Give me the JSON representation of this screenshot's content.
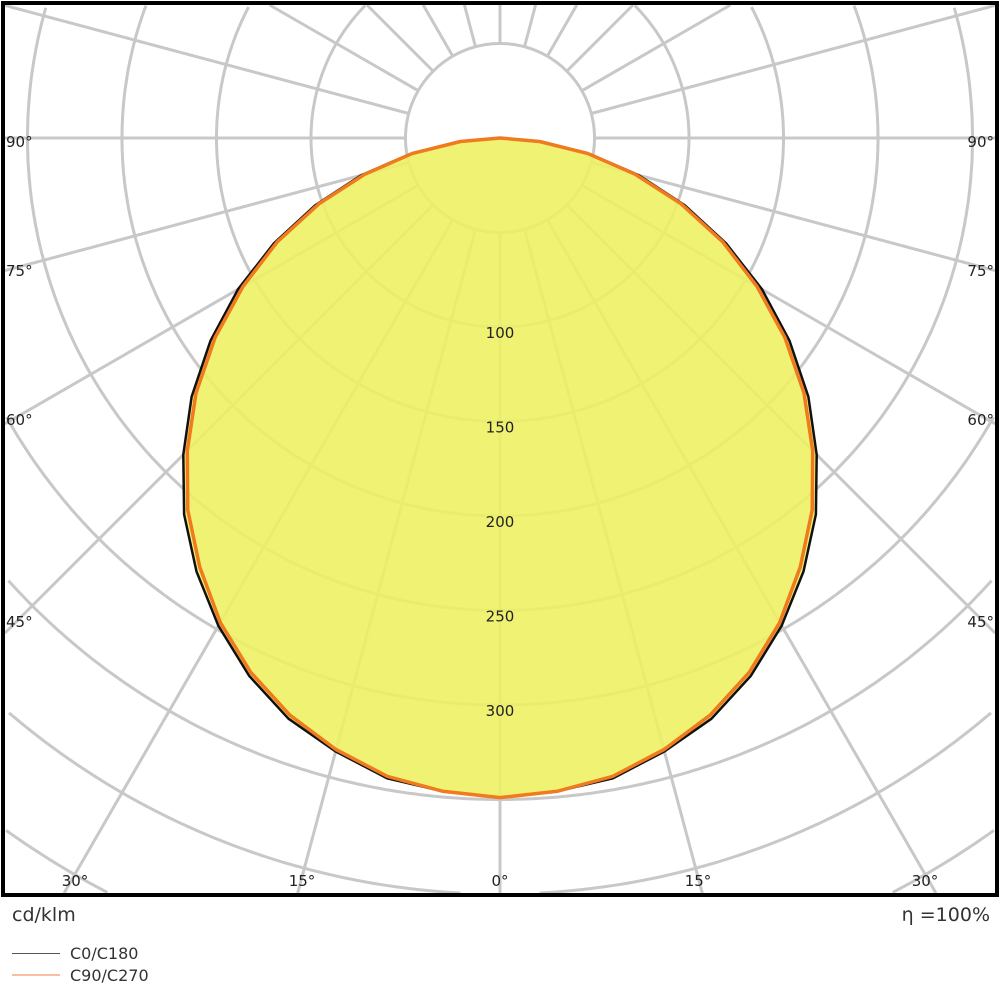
{
  "chart_data": {
    "type": "polar",
    "unit": "cd/klm",
    "efficiency": "η =100%",
    "radial_ticks": [
      100,
      150,
      200,
      250,
      300
    ],
    "radial_grid_step": 50,
    "angle_grid_step_deg": 15,
    "angle_labels": {
      "left": [
        "90°",
        "75°",
        "60°",
        "45°"
      ],
      "right": [
        "90°",
        "75°",
        "60°",
        "45°"
      ],
      "bottom": [
        "30°",
        "15°",
        "0°",
        "15°",
        "30°"
      ]
    },
    "angles_deg": [
      0,
      5,
      10,
      15,
      20,
      25,
      30,
      35,
      40,
      45,
      50,
      55,
      60,
      65,
      70,
      75,
      80,
      85,
      90
    ],
    "series": [
      {
        "name": "C0/C180",
        "color": "#111111",
        "values": [
          349,
          347,
          344,
          336,
          327,
          314,
          298,
          280,
          260,
          237,
          213,
          187,
          160,
          132,
          104,
          76,
          48,
          22,
          0
        ]
      },
      {
        "name": "C90/C270",
        "color": "#f07a1e",
        "values": [
          349,
          347,
          343,
          335,
          325,
          312,
          296,
          277,
          257,
          234,
          210,
          184,
          157,
          130,
          102,
          74,
          47,
          21,
          0
        ]
      }
    ],
    "fill_color": "#eef060",
    "grid_color": "#c8c8c8"
  },
  "legend": [
    {
      "label": "C0/C180",
      "color": "#555555"
    },
    {
      "label": "C90/C270",
      "color": "#f8c0a0"
    }
  ]
}
